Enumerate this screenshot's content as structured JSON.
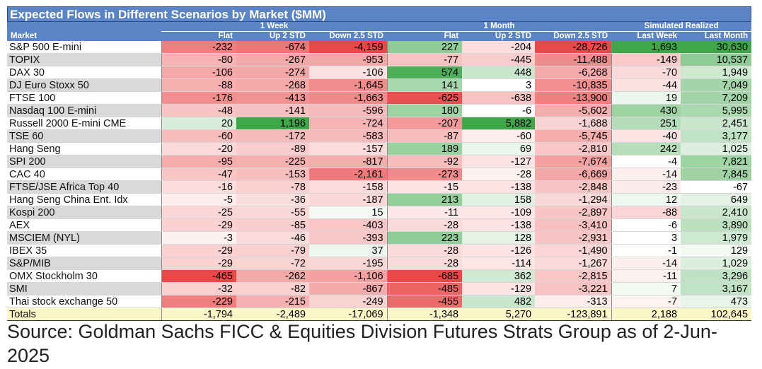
{
  "title": "Expected Flows in Different Scenarios by Market ($MM)",
  "header": {
    "market_label": "Market",
    "groups": [
      "1 Week",
      "1 Month",
      "Simulated Realized"
    ],
    "subheaders": [
      "Flat",
      "Up 2 STD",
      "Down 2.5 STD",
      "Flat",
      "Up 2 STD",
      "Down 2.5 STD",
      "Last Week",
      "Last Month"
    ]
  },
  "rows": [
    {
      "market": "S&P 500 E-mini",
      "values": [
        "-232",
        "-674",
        "-4,159",
        "227",
        "-204",
        "-28,726",
        "1,693",
        "30,630"
      ]
    },
    {
      "market": "TOPIX",
      "values": [
        "-80",
        "-267",
        "-953",
        "-77",
        "-445",
        "-11,488",
        "-149",
        "10,537"
      ]
    },
    {
      "market": "DAX 30",
      "values": [
        "-106",
        "-274",
        "-106",
        "574",
        "448",
        "-6,268",
        "-70",
        "1,949"
      ]
    },
    {
      "market": "DJ Euro Stoxx 50",
      "values": [
        "-88",
        "-268",
        "-1,645",
        "141",
        "3",
        "-10,835",
        "-44",
        "7,049"
      ]
    },
    {
      "market": "FTSE 100",
      "values": [
        "-176",
        "-413",
        "-1,663",
        "-625",
        "-638",
        "-13,900",
        "19",
        "7,209"
      ]
    },
    {
      "market": "Nasdaq 100 E-mini",
      "values": [
        "-48",
        "-141",
        "-596",
        "180",
        "-6",
        "-5,602",
        "430",
        "5,995"
      ]
    },
    {
      "market": "Russell 2000 E-mini CME",
      "values": [
        "20",
        "1,196",
        "-724",
        "-207",
        "5,882",
        "-1,688",
        "251",
        "2,451"
      ]
    },
    {
      "market": "TSE 60",
      "values": [
        "-60",
        "-172",
        "-583",
        "-87",
        "-60",
        "-5,745",
        "-40",
        "3,177"
      ]
    },
    {
      "market": "Hang Seng",
      "values": [
        "-20",
        "-89",
        "-157",
        "189",
        "69",
        "-2,810",
        "242",
        "1,025"
      ]
    },
    {
      "market": "SPI 200",
      "values": [
        "-95",
        "-225",
        "-817",
        "-92",
        "-127",
        "-7,674",
        "-4",
        "7,821"
      ]
    },
    {
      "market": "CAC 40",
      "values": [
        "-47",
        "-153",
        "-2,161",
        "-273",
        "-28",
        "-6,669",
        "-14",
        "7,845"
      ]
    },
    {
      "market": "FTSE/JSE Africa Top 40",
      "values": [
        "-16",
        "-78",
        "-158",
        "-15",
        "-138",
        "-2,848",
        "-23",
        "-67"
      ]
    },
    {
      "market": "Hang Seng China Ent. Idx",
      "values": [
        "-5",
        "-36",
        "-187",
        "213",
        "158",
        "-1,294",
        "12",
        "649"
      ]
    },
    {
      "market": "Kospi 200",
      "values": [
        "-25",
        "-55",
        "15",
        "-11",
        "-109",
        "-2,897",
        "-88",
        "2,410"
      ]
    },
    {
      "market": "AEX",
      "values": [
        "-29",
        "-85",
        "-403",
        "-28",
        "-138",
        "-3,410",
        "-6",
        "3,890"
      ]
    },
    {
      "market": "MSCIEM (NYL)",
      "values": [
        "-3",
        "-46",
        "-393",
        "223",
        "128",
        "-2,931",
        "3",
        "1,979"
      ]
    },
    {
      "market": "IBEX 35",
      "values": [
        "-29",
        "-79",
        "37",
        "-28",
        "-126",
        "-1,490",
        "-1",
        "129"
      ]
    },
    {
      "market": "S&P/MIB",
      "values": [
        "-29",
        "-72",
        "-195",
        "-28",
        "-114",
        "-1,267",
        "-14",
        "1,029"
      ]
    },
    {
      "market": "OMX Stockholm 30",
      "values": [
        "-465",
        "-262",
        "-1,106",
        "-685",
        "362",
        "-2,815",
        "-11",
        "3,296"
      ]
    },
    {
      "market": "SMI",
      "values": [
        "-32",
        "-82",
        "-867",
        "-485",
        "-129",
        "-3,221",
        "7",
        "3,167"
      ]
    },
    {
      "market": "Thai stock exchange 50",
      "values": [
        "-229",
        "-215",
        "-249",
        "-455",
        "482",
        "-313",
        "-7",
        "473"
      ]
    }
  ],
  "totals": {
    "market": "Totals",
    "values": [
      "-1,794",
      "-2,489",
      "-17,069",
      "-1,348",
      "5,270",
      "-123,891",
      "2,188",
      "102,645"
    ]
  },
  "source": "Source: Goldman Sachs FICC & Equities Division Futures Strats Group as of 2-Jun-2025",
  "colors": {
    "header_blue": "#5b84c6",
    "positive_green": "#3fa74a",
    "negative_red": "#e84848",
    "totals_fill": "#fbf6c7"
  },
  "chart_data": {
    "type": "table",
    "title": "Expected Flows in Different Scenarios by Market ($MM)",
    "column_groups": [
      "1 Week",
      "1 Month",
      "Simulated Realized"
    ],
    "columns": [
      "Flat",
      "Up 2 STD",
      "Down 2.5 STD",
      "Flat",
      "Up 2 STD",
      "Down 2.5 STD",
      "Last Week",
      "Last Month"
    ],
    "heatmap_coloring": "red for negative, green for positive, intensity by magnitude per column",
    "row_labels": [
      "S&P 500 E-mini",
      "TOPIX",
      "DAX 30",
      "DJ Euro Stoxx 50",
      "FTSE 100",
      "Nasdaq 100 E-mini",
      "Russell 2000 E-mini CME",
      "TSE 60",
      "Hang Seng",
      "SPI 200",
      "CAC 40",
      "FTSE/JSE Africa Top 40",
      "Hang Seng China Ent. Idx",
      "Kospi 200",
      "AEX",
      "MSCIEM (NYL)",
      "IBEX 35",
      "S&P/MIB",
      "OMX Stockholm 30",
      "SMI",
      "Thai stock exchange 50",
      "Totals"
    ]
  }
}
